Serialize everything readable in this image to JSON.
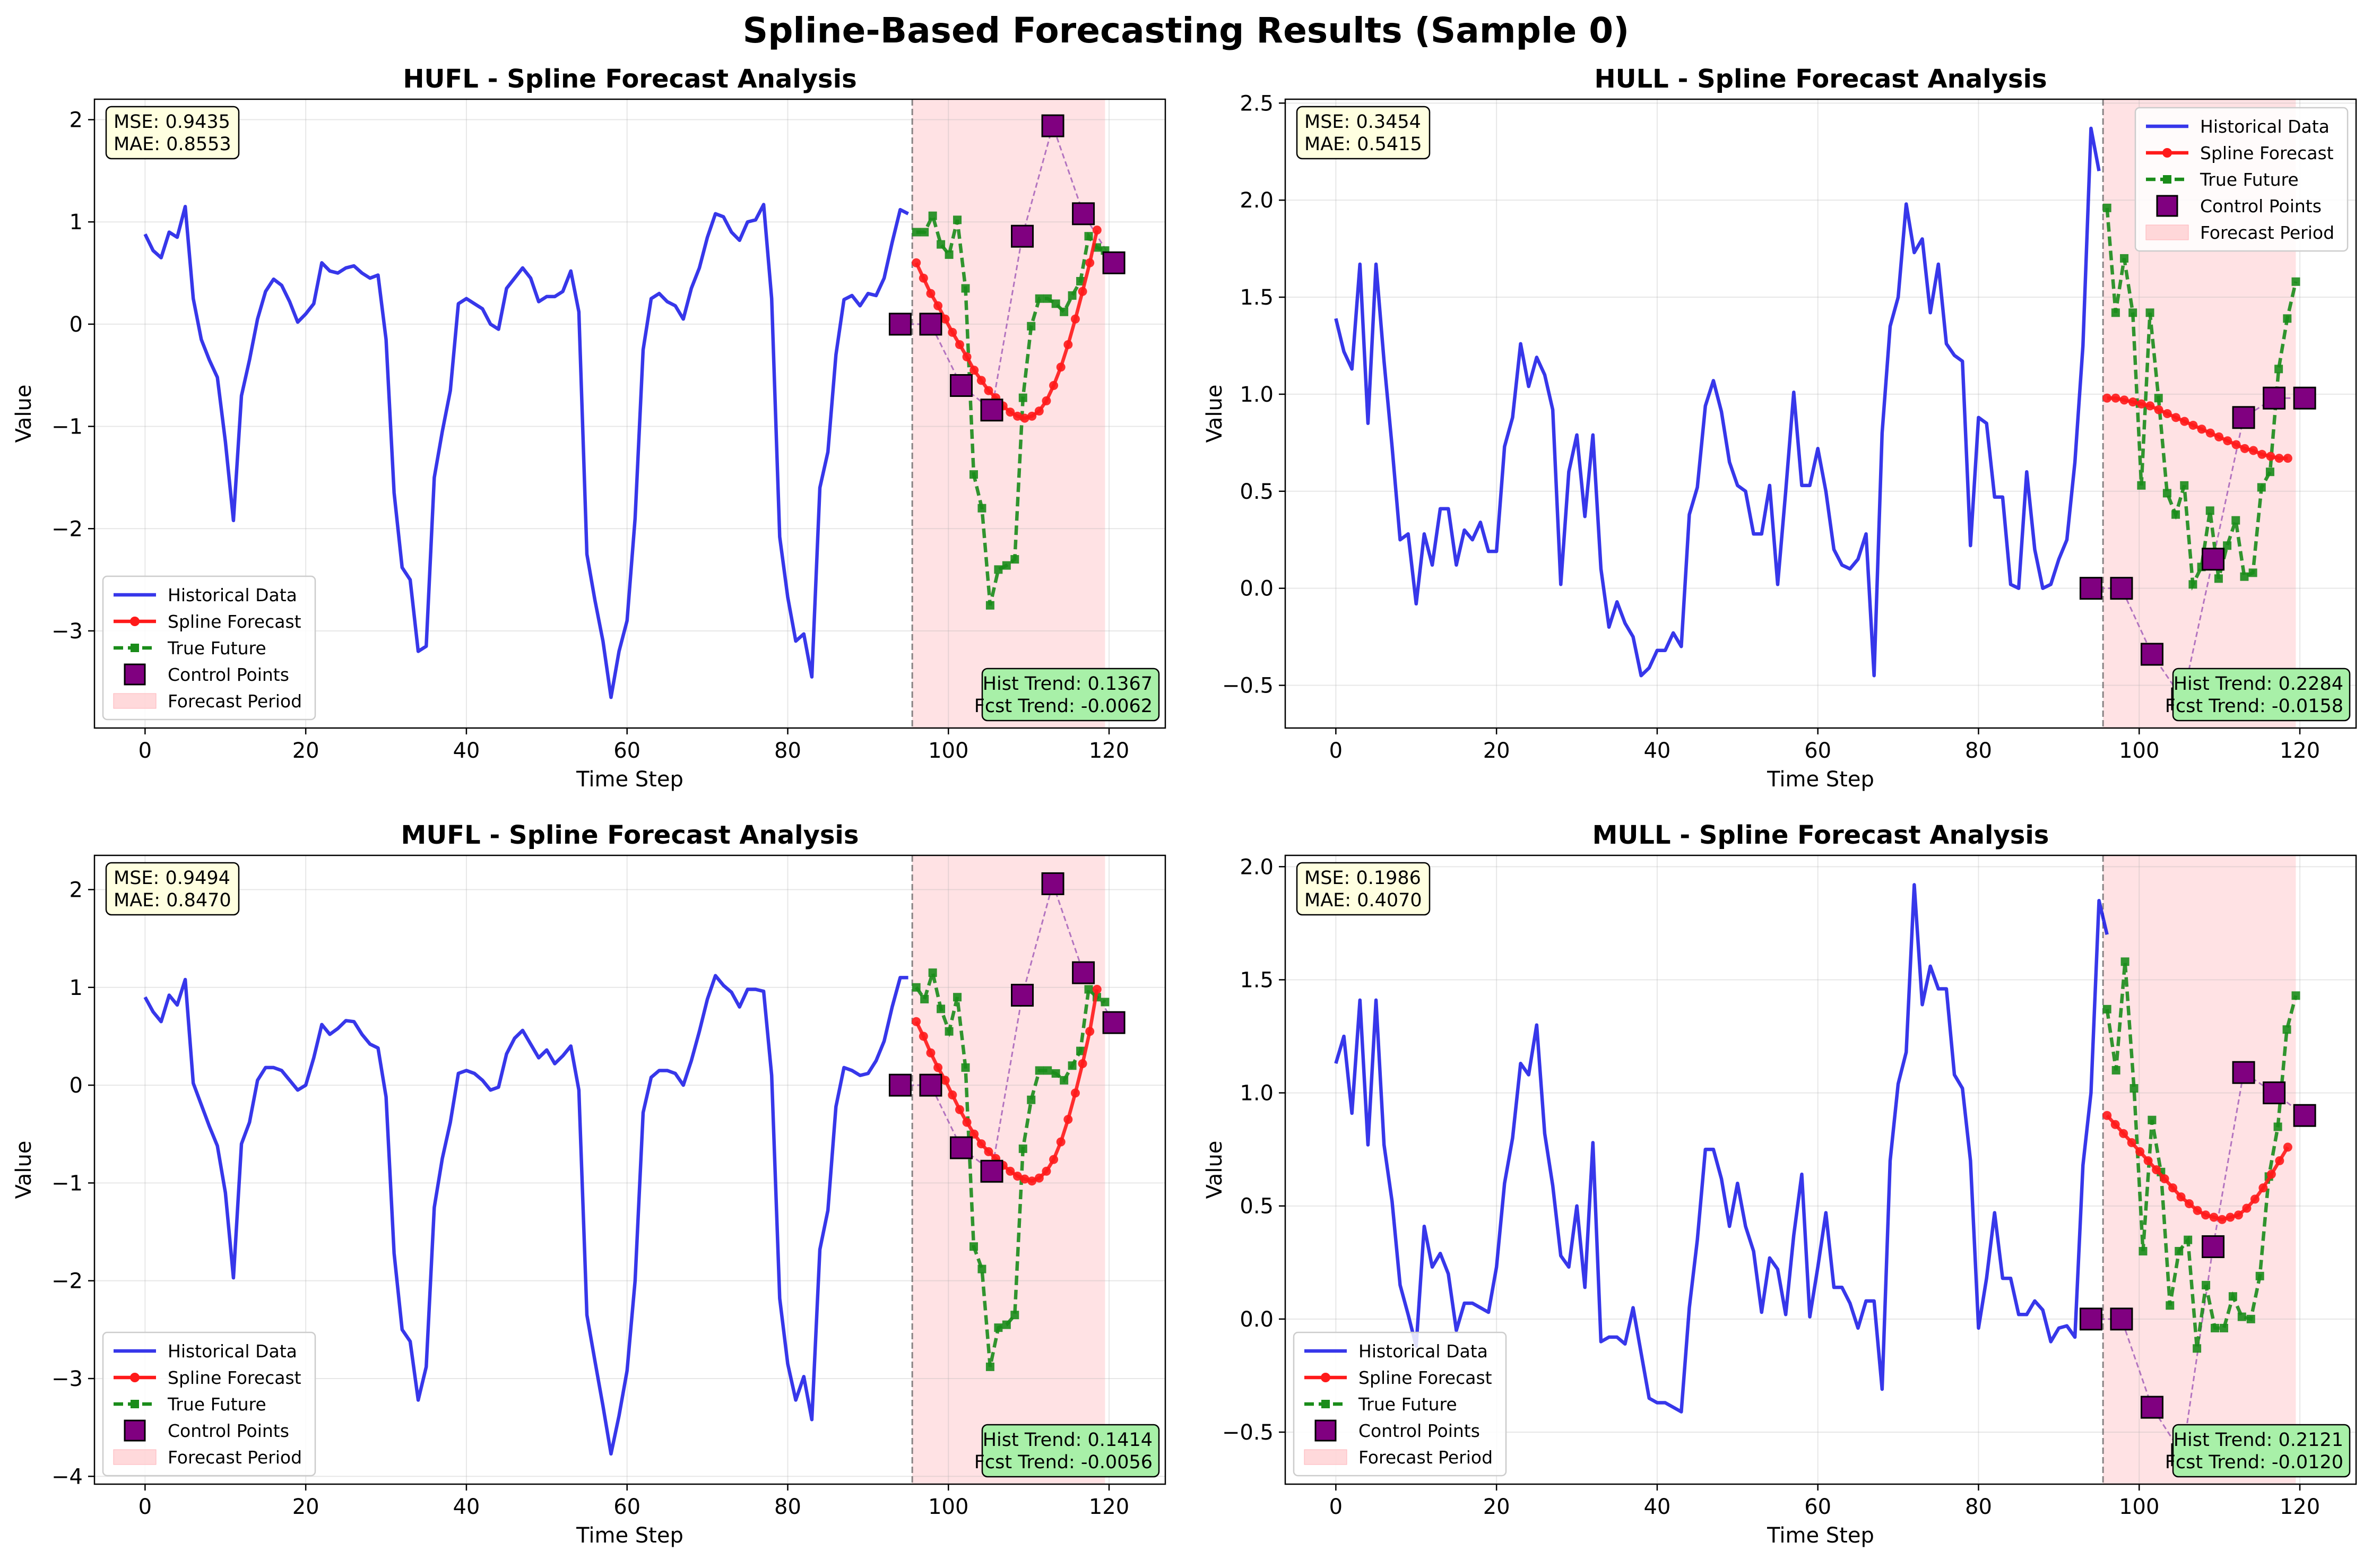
{
  "figure": {
    "suptitle": "Spline-Based Forecasting Results (Sample 0)"
  },
  "colors": {
    "historical": "#1414e6",
    "forecast": "#ff1a1a",
    "true_future": "#1a8c1a",
    "control_points": "#800080",
    "control_line": "#9a4fb4",
    "forecast_period": "#ffb3b8",
    "metric_box": "#ffffe0",
    "trend_box": "#a8f0a8"
  },
  "chart_data": [
    {
      "type": "line",
      "title": "HUFL - Spline Forecast Analysis",
      "xlabel": "Time Step",
      "ylabel": "Value",
      "xlim": [
        -6.3,
        127.0
      ],
      "ylim": [
        -3.95,
        2.2
      ],
      "xticks": [
        0,
        20,
        40,
        60,
        80,
        100,
        120
      ],
      "yticks": [
        -3,
        -2,
        -1,
        0,
        1,
        2
      ],
      "metrics": [
        "MSE: 0.9435",
        "MAE: 0.8553"
      ],
      "trend": [
        "Hist Trend: 0.1367",
        "Fcst Trend: -0.0062"
      ],
      "legend_position": "lower-left",
      "legend": [
        "Historical Data",
        "Spline Forecast",
        "True Future",
        "Control Points",
        "Forecast Period"
      ],
      "forecast_period": [
        95.5,
        119.5
      ],
      "historical": [
        0.88,
        0.72,
        0.65,
        0.9,
        0.85,
        1.15,
        0.25,
        -0.15,
        -0.35,
        -0.52,
        -1.15,
        -1.92,
        -0.7,
        -0.35,
        0.05,
        0.32,
        0.44,
        0.38,
        0.22,
        0.02,
        0.1,
        0.2,
        0.6,
        0.52,
        0.5,
        0.55,
        0.57,
        0.5,
        0.45,
        0.48,
        -0.15,
        -1.65,
        -2.38,
        -2.5,
        -3.2,
        -3.15,
        -1.5,
        -1.05,
        -0.65,
        0.2,
        0.25,
        0.2,
        0.15,
        0.0,
        -0.05,
        0.35,
        0.45,
        0.55,
        0.45,
        0.22,
        0.27,
        0.27,
        0.32,
        0.52,
        0.12,
        -2.25,
        -2.7,
        -3.1,
        -3.65,
        -3.2,
        -2.9,
        -1.9,
        -0.25,
        0.25,
        0.3,
        0.22,
        0.18,
        0.05,
        0.35,
        0.55,
        0.85,
        1.08,
        1.05,
        0.9,
        0.82,
        1.0,
        1.02,
        1.17,
        0.25,
        -2.08,
        -2.67,
        -3.1,
        -3.03,
        -3.45,
        -1.6,
        -1.25,
        -0.3,
        0.24,
        0.28,
        0.18,
        0.3,
        0.28,
        0.45,
        0.8,
        1.12,
        1.08
      ],
      "forecast": [
        0.6,
        0.45,
        0.3,
        0.18,
        0.05,
        -0.08,
        -0.2,
        -0.32,
        -0.45,
        -0.55,
        -0.65,
        -0.72,
        -0.8,
        -0.86,
        -0.9,
        -0.92,
        -0.9,
        -0.85,
        -0.75,
        -0.6,
        -0.42,
        -0.2,
        0.05,
        0.32,
        0.6,
        0.92
      ],
      "true_future": [
        0.9,
        0.9,
        1.06,
        0.78,
        0.68,
        1.02,
        0.35,
        -1.47,
        -1.8,
        -2.75,
        -2.4,
        -2.36,
        -2.3,
        -0.72,
        -0.02,
        0.25,
        0.25,
        0.2,
        0.12,
        0.28,
        0.42,
        0.86,
        0.75,
        0.72
      ],
      "control_points": {
        "x": [
          94,
          97.8,
          101.6,
          105.4,
          109.2,
          113,
          116.8,
          120.6
        ],
        "y": [
          0.0,
          0.0,
          -0.6,
          -0.84,
          0.86,
          1.94,
          1.08,
          0.6
        ]
      }
    },
    {
      "type": "line",
      "title": "HULL - Spline Forecast Analysis",
      "xlabel": "Time Step",
      "ylabel": "Value",
      "xlim": [
        -6.3,
        127.0
      ],
      "ylim": [
        -0.72,
        2.52
      ],
      "xticks": [
        0,
        20,
        40,
        60,
        80,
        100,
        120
      ],
      "yticks": [
        -0.5,
        0.0,
        0.5,
        1.0,
        1.5,
        2.0,
        2.5
      ],
      "metrics": [
        "MSE: 0.3454",
        "MAE: 0.5415"
      ],
      "trend": [
        "Hist Trend: 0.2284",
        "Fcst Trend: -0.0158"
      ],
      "legend_position": "upper-right",
      "legend": [
        "Historical Data",
        "Spline Forecast",
        "True Future",
        "Control Points",
        "Forecast Period"
      ],
      "forecast_period": [
        95.5,
        119.5
      ],
      "historical": [
        1.39,
        1.22,
        1.13,
        1.67,
        0.85,
        1.67,
        1.17,
        0.73,
        0.25,
        0.28,
        -0.08,
        0.28,
        0.12,
        0.41,
        0.41,
        0.12,
        0.3,
        0.25,
        0.34,
        0.19,
        0.19,
        0.73,
        0.88,
        1.26,
        1.04,
        1.19,
        1.1,
        0.92,
        0.02,
        0.6,
        0.79,
        0.37,
        0.79,
        0.1,
        -0.2,
        -0.07,
        -0.18,
        -0.25,
        -0.45,
        -0.41,
        -0.32,
        -0.32,
        -0.23,
        -0.3,
        0.38,
        0.52,
        0.94,
        1.07,
        0.91,
        0.65,
        0.53,
        0.5,
        0.28,
        0.28,
        0.53,
        0.02,
        0.5,
        1.01,
        0.53,
        0.53,
        0.72,
        0.5,
        0.2,
        0.12,
        0.1,
        0.15,
        0.28,
        -0.45,
        0.8,
        1.35,
        1.5,
        1.98,
        1.73,
        1.8,
        1.42,
        1.67,
        1.26,
        1.2,
        1.17,
        0.22,
        0.88,
        0.85,
        0.47,
        0.47,
        0.02,
        0.0,
        0.6,
        0.2,
        0.0,
        0.02,
        0.15,
        0.25,
        0.65,
        1.25,
        2.37,
        2.15
      ],
      "forecast": [
        0.98,
        0.98,
        0.97,
        0.96,
        0.95,
        0.94,
        0.92,
        0.9,
        0.88,
        0.86,
        0.84,
        0.82,
        0.8,
        0.78,
        0.76,
        0.74,
        0.72,
        0.71,
        0.69,
        0.68,
        0.67,
        0.67
      ],
      "true_future": [
        1.96,
        1.42,
        1.7,
        1.42,
        0.53,
        1.42,
        0.98,
        0.49,
        0.38,
        0.53,
        0.02,
        0.11,
        0.4,
        0.05,
        0.22,
        0.35,
        0.06,
        0.08,
        0.52,
        0.6,
        1.13,
        1.39,
        1.58
      ],
      "control_points": {
        "x": [
          94,
          97.8,
          101.6,
          105.4,
          109.2,
          113,
          116.8,
          120.6
        ],
        "y": [
          0.0,
          0.0,
          -0.34,
          -0.57,
          0.15,
          0.88,
          0.98,
          0.98
        ]
      }
    },
    {
      "type": "line",
      "title": "MUFL - Spline Forecast Analysis",
      "xlabel": "Time Step",
      "ylabel": "Value",
      "xlim": [
        -6.3,
        127.0
      ],
      "ylim": [
        -4.08,
        2.35
      ],
      "xticks": [
        0,
        20,
        40,
        60,
        80,
        100,
        120
      ],
      "yticks": [
        -4,
        -3,
        -2,
        -1,
        0,
        1,
        2
      ],
      "metrics": [
        "MSE: 0.9494",
        "MAE: 0.8470"
      ],
      "trend": [
        "Hist Trend: 0.1414",
        "Fcst Trend: -0.0056"
      ],
      "legend_position": "lower-left",
      "legend": [
        "Historical Data",
        "Spline Forecast",
        "True Future",
        "Control Points",
        "Forecast Period"
      ],
      "forecast_period": [
        95.5,
        119.5
      ],
      "historical": [
        0.9,
        0.75,
        0.65,
        0.92,
        0.82,
        1.08,
        0.02,
        -0.2,
        -0.42,
        -0.62,
        -1.1,
        -1.97,
        -0.6,
        -0.38,
        0.05,
        0.18,
        0.18,
        0.15,
        0.05,
        -0.05,
        0.0,
        0.28,
        0.62,
        0.52,
        0.58,
        0.66,
        0.65,
        0.52,
        0.42,
        0.38,
        -0.12,
        -1.72,
        -2.5,
        -2.62,
        -3.22,
        -2.88,
        -1.25,
        -0.75,
        -0.38,
        0.12,
        0.15,
        0.12,
        0.05,
        -0.05,
        -0.02,
        0.32,
        0.48,
        0.56,
        0.42,
        0.28,
        0.36,
        0.22,
        0.3,
        0.4,
        -0.05,
        -2.35,
        -2.82,
        -3.28,
        -3.77,
        -3.38,
        -2.92,
        -2.0,
        -0.28,
        0.08,
        0.15,
        0.15,
        0.12,
        0.0,
        0.25,
        0.55,
        0.88,
        1.12,
        1.02,
        0.95,
        0.8,
        0.98,
        0.98,
        0.96,
        0.1,
        -2.18,
        -2.85,
        -3.22,
        -2.98,
        -3.42,
        -1.68,
        -1.28,
        -0.22,
        0.18,
        0.15,
        0.1,
        0.12,
        0.25,
        0.45,
        0.8,
        1.1,
        1.1
      ],
      "forecast": [
        0.65,
        0.5,
        0.33,
        0.18,
        0.05,
        -0.1,
        -0.25,
        -0.38,
        -0.5,
        -0.6,
        -0.68,
        -0.75,
        -0.82,
        -0.88,
        -0.93,
        -0.96,
        -0.98,
        -0.95,
        -0.88,
        -0.76,
        -0.58,
        -0.35,
        -0.08,
        0.22,
        0.55,
        0.98
      ],
      "true_future": [
        1.0,
        0.88,
        1.15,
        0.78,
        0.55,
        0.9,
        0.18,
        -1.65,
        -1.88,
        -2.88,
        -2.48,
        -2.45,
        -2.35,
        -0.65,
        -0.15,
        0.15,
        0.15,
        0.12,
        0.05,
        0.2,
        0.35,
        0.98,
        0.9,
        0.85
      ],
      "control_points": {
        "x": [
          94,
          97.8,
          101.6,
          105.4,
          109.2,
          113,
          116.8,
          120.6
        ],
        "y": [
          0.0,
          0.0,
          -0.64,
          -0.88,
          0.92,
          2.06,
          1.15,
          0.64
        ]
      }
    },
    {
      "type": "line",
      "title": "MULL - Spline Forecast Analysis",
      "xlabel": "Time Step",
      "ylabel": "Value",
      "xlim": [
        -6.3,
        127.0
      ],
      "ylim": [
        -0.73,
        2.05
      ],
      "xticks": [
        0,
        20,
        40,
        60,
        80,
        100,
        120
      ],
      "yticks": [
        -0.5,
        0.0,
        0.5,
        1.0,
        1.5,
        2.0
      ],
      "metrics": [
        "MSE: 0.1986",
        "MAE: 0.4070"
      ],
      "trend": [
        "Hist Trend: 0.2121",
        "Fcst Trend: -0.0120"
      ],
      "legend_position": "lower-left",
      "legend": [
        "Historical Data",
        "Spline Forecast",
        "True Future",
        "Control Points",
        "Forecast Period"
      ],
      "forecast_period": [
        95.5,
        119.5
      ],
      "historical": [
        1.13,
        1.25,
        0.91,
        1.41,
        0.77,
        1.41,
        0.77,
        0.52,
        0.15,
        0.02,
        -0.12,
        0.41,
        0.23,
        0.29,
        0.2,
        -0.05,
        0.07,
        0.07,
        0.05,
        0.03,
        0.23,
        0.6,
        0.8,
        1.13,
        1.08,
        1.3,
        0.82,
        0.59,
        0.28,
        0.23,
        0.5,
        0.14,
        0.78,
        -0.1,
        -0.08,
        -0.08,
        -0.11,
        0.05,
        -0.15,
        -0.35,
        -0.37,
        -0.37,
        -0.39,
        -0.41,
        0.05,
        0.35,
        0.75,
        0.75,
        0.62,
        0.41,
        0.6,
        0.41,
        0.3,
        0.03,
        0.27,
        0.22,
        0.02,
        0.37,
        0.64,
        0.01,
        0.23,
        0.47,
        0.14,
        0.14,
        0.07,
        -0.04,
        0.08,
        0.08,
        -0.31,
        0.7,
        1.04,
        1.18,
        1.92,
        1.39,
        1.56,
        1.46,
        1.46,
        1.08,
        1.02,
        0.7,
        -0.04,
        0.18,
        0.47,
        0.18,
        0.18,
        0.02,
        0.02,
        0.08,
        0.04,
        -0.1,
        -0.04,
        -0.03,
        -0.08,
        0.68,
        1.0,
        1.85,
        1.7
      ],
      "forecast": [
        0.9,
        0.86,
        0.82,
        0.78,
        0.74,
        0.7,
        0.66,
        0.62,
        0.58,
        0.54,
        0.51,
        0.48,
        0.46,
        0.45,
        0.44,
        0.45,
        0.46,
        0.49,
        0.53,
        0.58,
        0.64,
        0.7,
        0.76
      ],
      "true_future": [
        1.37,
        1.1,
        1.58,
        1.02,
        0.3,
        0.88,
        0.65,
        0.06,
        0.3,
        0.35,
        -0.13,
        0.15,
        -0.04,
        -0.04,
        0.1,
        0.01,
        0.0,
        0.19,
        0.63,
        0.85,
        1.28,
        1.43
      ],
      "control_points": {
        "x": [
          94,
          97.8,
          101.6,
          105.4,
          109.2,
          113,
          116.8,
          120.6
        ],
        "y": [
          0.0,
          0.0,
          -0.39,
          -0.6,
          0.32,
          1.09,
          1.0,
          0.9
        ]
      }
    }
  ]
}
